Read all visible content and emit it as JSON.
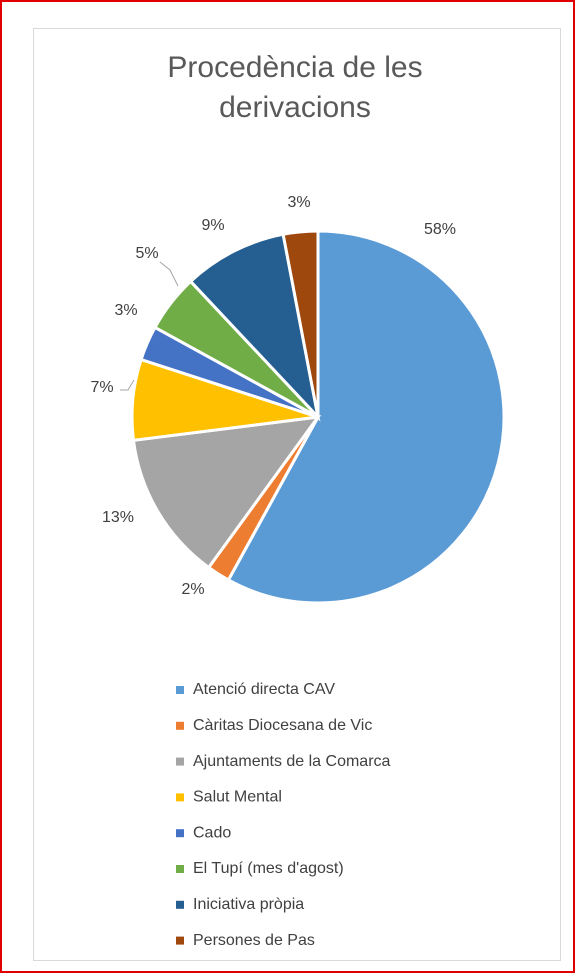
{
  "chart_data": {
    "type": "pie",
    "title": "Procedència de les derivacions",
    "categories": [
      "Atenció directa CAV",
      "Càritas Diocesana de Vic",
      "Ajuntaments de la Comarca",
      "Salut Mental",
      "Cado",
      "El Tupí (mes d'agost)",
      "Iniciativa pròpia",
      "Persones de Pas"
    ],
    "values": [
      58,
      2,
      13,
      7,
      3,
      5,
      9,
      3
    ],
    "value_labels": [
      "58%",
      "2%",
      "13%",
      "7%",
      "3%",
      "5%",
      "9%",
      "3%"
    ],
    "colors": [
      "#5b9bd5",
      "#ed7d31",
      "#a5a5a5",
      "#ffc000",
      "#4472c4",
      "#70ad47",
      "#255e91",
      "#9e480e"
    ],
    "legend": "bottom"
  }
}
